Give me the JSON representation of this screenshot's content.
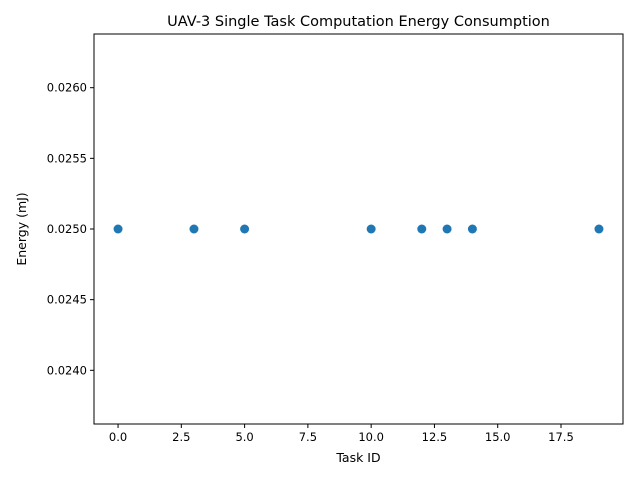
{
  "chart_data": {
    "type": "scatter",
    "title": "UAV-3 Single Task Computation Energy Consumption",
    "xlabel": "Task ID",
    "ylabel": "Energy (mJ)",
    "x": [
      0,
      3,
      5,
      10,
      12,
      13,
      14,
      19
    ],
    "y": [
      0.025,
      0.025,
      0.025,
      0.025,
      0.025,
      0.025,
      0.025,
      0.025
    ],
    "xlim": [
      -0.95,
      19.95
    ],
    "ylim": [
      0.02362,
      0.02638
    ],
    "xticks": [
      0.0,
      2.5,
      5.0,
      7.5,
      10.0,
      12.5,
      15.0,
      17.5
    ],
    "xtick_labels": [
      "0.0",
      "2.5",
      "5.0",
      "7.5",
      "10.0",
      "12.5",
      "15.0",
      "17.5"
    ],
    "yticks": [
      0.024,
      0.0245,
      0.025,
      0.0255,
      0.026
    ],
    "ytick_labels": [
      "0.0240",
      "0.0245",
      "0.0250",
      "0.0255",
      "0.0260"
    ],
    "grid": false,
    "marker_color": "#1f77b4"
  }
}
